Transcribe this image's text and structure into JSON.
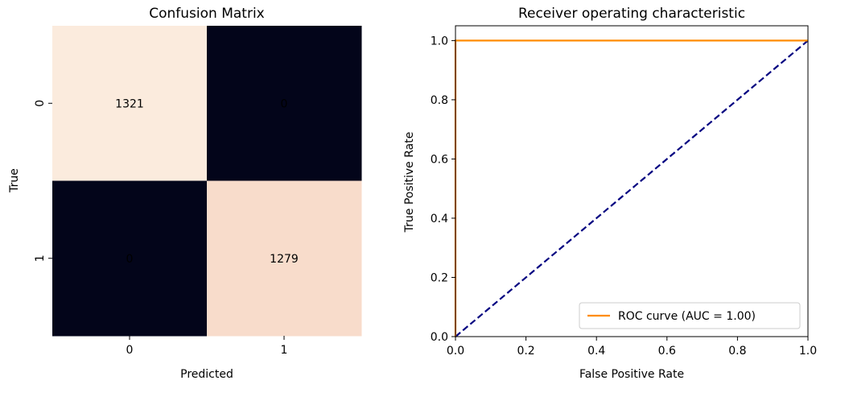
{
  "chart_data": [
    {
      "type": "heatmap",
      "title": "Confusion Matrix",
      "xlabel": "Predicted",
      "ylabel": "True",
      "x_categories": [
        "0",
        "1"
      ],
      "y_categories": [
        "0",
        "1"
      ],
      "values": [
        [
          1321,
          0
        ],
        [
          0,
          1279
        ]
      ],
      "colors": {
        "c00": "#fbebdd",
        "c01": "#03051a",
        "c10": "#03051a",
        "c11": "#f8dccb",
        "text_light_bg": "#262626",
        "text_dark_bg": "#ffffff"
      }
    },
    {
      "type": "line",
      "title": "Receiver operating characteristic",
      "xlabel": "False Positive Rate",
      "ylabel": "True Positive Rate",
      "xlim": [
        0.0,
        1.0
      ],
      "ylim": [
        0.0,
        1.05
      ],
      "x_ticks": [
        "0.0",
        "0.2",
        "0.4",
        "0.6",
        "0.8",
        "1.0"
      ],
      "y_ticks": [
        "0.0",
        "0.2",
        "0.4",
        "0.6",
        "0.8",
        "1.0"
      ],
      "grid": false,
      "legend_position": "lower-right",
      "series": [
        {
          "name": "ROC curve (AUC = 1.00)",
          "x": [
            0.0,
            0.0,
            1.0
          ],
          "y": [
            0.0,
            1.0,
            1.0
          ],
          "color": "#ff8c00",
          "style": "solid"
        },
        {
          "x": [
            0.0,
            1.0
          ],
          "y": [
            0.0,
            1.0
          ],
          "color": "#000080",
          "style": "dashed"
        }
      ]
    }
  ]
}
